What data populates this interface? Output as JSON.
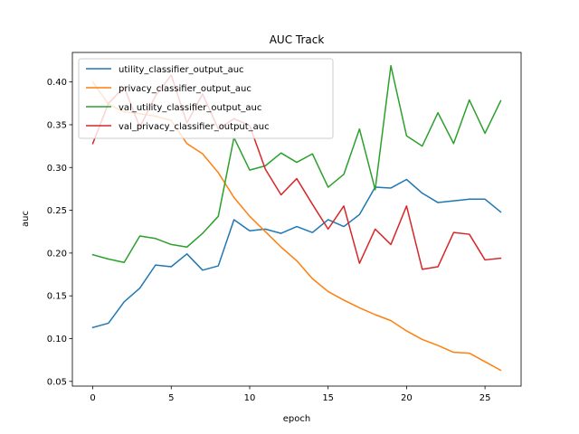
{
  "chart_data": {
    "type": "line",
    "title": "AUC Track",
    "xlabel": "epoch",
    "ylabel": "auc",
    "xlim": [
      -1.3,
      27.3
    ],
    "ylim": [
      0.0445,
      0.4345
    ],
    "x_ticks": [
      0,
      5,
      10,
      15,
      20,
      25
    ],
    "y_ticks": [
      0.05,
      0.1,
      0.15,
      0.2,
      0.25,
      0.3,
      0.35,
      0.4
    ],
    "y_tick_labels": [
      "0.05",
      "0.10",
      "0.15",
      "0.20",
      "0.25",
      "0.30",
      "0.35",
      "0.40"
    ],
    "grid": false,
    "legend_position": "upper-left",
    "x": [
      0,
      1,
      2,
      3,
      4,
      5,
      6,
      7,
      8,
      9,
      10,
      11,
      12,
      13,
      14,
      15,
      16,
      17,
      18,
      19,
      20,
      21,
      22,
      23,
      24,
      25,
      26
    ],
    "series": [
      {
        "name": "utility_classifier_output_auc",
        "color": "#1f77b4",
        "values": [
          0.113,
          0.118,
          0.143,
          0.159,
          0.186,
          0.184,
          0.199,
          0.18,
          0.185,
          0.239,
          0.226,
          0.228,
          0.223,
          0.231,
          0.224,
          0.239,
          0.231,
          0.245,
          0.277,
          0.276,
          0.286,
          0.27,
          0.259,
          0.261,
          0.263,
          0.263,
          0.248
        ]
      },
      {
        "name": "privacy_classifier_output_auc",
        "color": "#ff7f0e",
        "values": [
          0.4,
          0.374,
          0.365,
          0.363,
          0.36,
          0.355,
          0.328,
          0.316,
          0.294,
          0.265,
          0.243,
          0.225,
          0.207,
          0.191,
          0.17,
          0.155,
          0.145,
          0.136,
          0.128,
          0.121,
          0.109,
          0.099,
          0.092,
          0.084,
          0.083,
          0.073,
          0.063
        ]
      },
      {
        "name": "val_utility_classifier_output_auc",
        "color": "#2ca02c",
        "values": [
          0.198,
          0.193,
          0.189,
          0.22,
          0.217,
          0.21,
          0.207,
          0.223,
          0.243,
          0.335,
          0.297,
          0.302,
          0.317,
          0.306,
          0.316,
          0.277,
          0.292,
          0.345,
          0.274,
          0.419,
          0.337,
          0.325,
          0.364,
          0.328,
          0.379,
          0.34,
          0.378
        ]
      },
      {
        "name": "val_privacy_classifier_output_auc",
        "color": "#d62728",
        "values": [
          0.328,
          0.375,
          0.394,
          0.347,
          0.384,
          0.408,
          0.352,
          0.386,
          0.345,
          0.357,
          0.349,
          0.298,
          0.268,
          0.287,
          0.257,
          0.228,
          0.255,
          0.188,
          0.228,
          0.21,
          0.255,
          0.181,
          0.184,
          0.224,
          0.222,
          0.192,
          0.194
        ]
      }
    ]
  }
}
